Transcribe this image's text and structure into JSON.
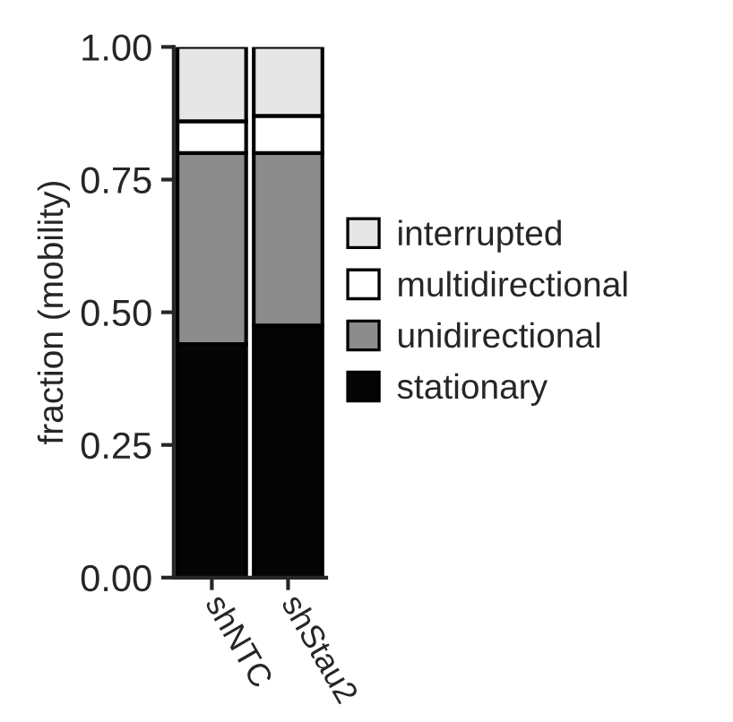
{
  "chart_data": {
    "type": "bar",
    "stacked": true,
    "ylabel": "fraction (mobility)",
    "categories": [
      "shNTC",
      "shStau2"
    ],
    "series": [
      {
        "name": "stationary",
        "color": "#050505",
        "values": [
          0.44,
          0.475
        ]
      },
      {
        "name": "unidirectional",
        "color": "#8c8c8c",
        "values": [
          0.36,
          0.325
        ]
      },
      {
        "name": "multidirectional",
        "color": "#ffffff",
        "values": [
          0.06,
          0.07
        ]
      },
      {
        "name": "interrupted",
        "color": "#e6e6e6",
        "values": [
          0.14,
          0.13
        ]
      }
    ],
    "ylim": [
      0,
      1
    ],
    "yticks": [
      {
        "value": 0,
        "label": "0.00"
      },
      {
        "value": 0.25,
        "label": "0.25"
      },
      {
        "value": 0.5,
        "label": "0.50"
      },
      {
        "value": 0.75,
        "label": "0.75"
      },
      {
        "value": 1,
        "label": "1.00"
      }
    ],
    "legend": "right",
    "grid": false
  }
}
